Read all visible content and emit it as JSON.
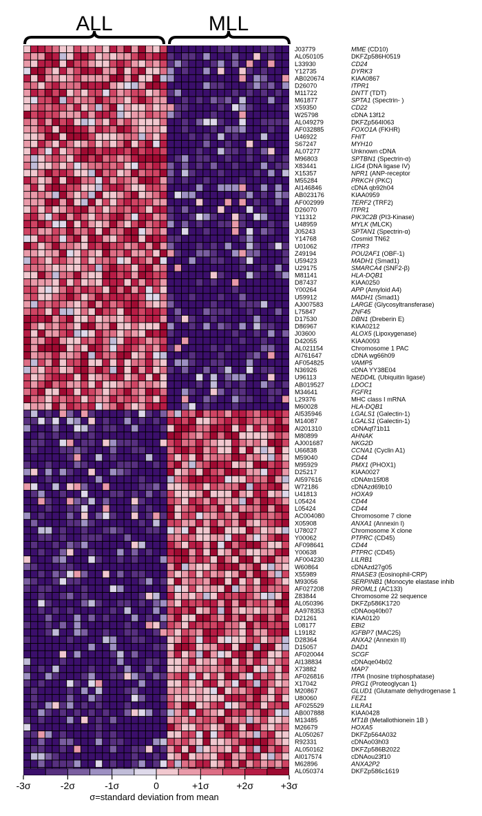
{
  "chart_data": {
    "type": "heatmap",
    "group_labels": [
      "ALL",
      "MLL"
    ],
    "group_sizes": [
      20,
      17
    ],
    "colorbar": {
      "ticks": [
        "-3σ",
        "-2σ",
        "-1σ",
        "0",
        "+1σ",
        "+2σ",
        "+3σ"
      ],
      "caption": "σ=standard deviation from mean",
      "colors": [
        "#3b0f6b",
        "#57307f",
        "#7a5ea0",
        "#9d90c2",
        "#c0bcd8",
        "#ded9ea",
        "#f1c8cf",
        "#e99aa9",
        "#dd6e85",
        "#cf4463",
        "#b71c45",
        "#9e0a31"
      ]
    },
    "rows": [
      {
        "acc": "J03779",
        "gene": "MME",
        "note": "(CD10)"
      },
      {
        "acc": "AL050105",
        "gene": "",
        "note": "DKFZp586H0519"
      },
      {
        "acc": "L33930",
        "gene": "CD24",
        "note": ""
      },
      {
        "acc": "Y12735",
        "gene": "DYRK3",
        "note": ""
      },
      {
        "acc": "AB020674",
        "gene": "",
        "note": "KIAA0867"
      },
      {
        "acc": "D26070",
        "gene": "ITPR1",
        "note": ""
      },
      {
        "acc": "M11722",
        "gene": "DNTT",
        "note": "(TDT)"
      },
      {
        "acc": "M61877",
        "gene": "SPTA1",
        "note": "(Spectrin-  )"
      },
      {
        "acc": "X59350",
        "gene": "CD22",
        "note": ""
      },
      {
        "acc": "W25798",
        "gene": "",
        "note": "cDNA 13f12"
      },
      {
        "acc": "AL049279",
        "gene": "",
        "note": "DKFZp564I063"
      },
      {
        "acc": "AF032885",
        "gene": "FOXO1A",
        "note": "(FKHR)"
      },
      {
        "acc": "U46922",
        "gene": "FHIT",
        "note": ""
      },
      {
        "acc": "S67247",
        "gene": "MYH10",
        "note": ""
      },
      {
        "acc": "AL07277",
        "gene": "",
        "note": "Unknown cDNA"
      },
      {
        "acc": "M96803",
        "gene": "SPTBN1",
        "note": "(Spectrin-α)"
      },
      {
        "acc": "X83441",
        "gene": "LIG4",
        "note": "(DNA ligase IV)"
      },
      {
        "acc": "X15357",
        "gene": "NPR1",
        "note": "(ANP-receptor"
      },
      {
        "acc": "M55284",
        "gene": "PRKCH",
        "note": "(PKC)"
      },
      {
        "acc": "AI146846",
        "gene": "",
        "note": "cDNA qb92h04"
      },
      {
        "acc": "AB023176",
        "gene": "",
        "note": "KIAA0959"
      },
      {
        "acc": "AF002999",
        "gene": "TERF2",
        "note": "(TRF2)"
      },
      {
        "acc": "D26070",
        "gene": "ITPR1",
        "note": ""
      },
      {
        "acc": "Y11312",
        "gene": "PIK3C2B",
        "note": "(PI3-Kinase)"
      },
      {
        "acc": "U48959",
        "gene": "MYLK",
        "note": "(MLCK)"
      },
      {
        "acc": "J05243",
        "gene": "SPTAN1",
        "note": "(Spectrin-α)"
      },
      {
        "acc": "Y14768",
        "gene": "",
        "note": "Cosmid TN62"
      },
      {
        "acc": "U01062",
        "gene": "ITPR3",
        "note": ""
      },
      {
        "acc": "Z49194",
        "gene": "POU2AF1",
        "note": "(OBF-1)"
      },
      {
        "acc": "U59423",
        "gene": "MADH1",
        "note": "(Smad1)"
      },
      {
        "acc": "U29175",
        "gene": "SMARCA4",
        "note": "(SNF2-β)"
      },
      {
        "acc": "M81141",
        "gene": "HLA-DQB1",
        "note": ""
      },
      {
        "acc": "D87437",
        "gene": "",
        "note": "KIAA0250"
      },
      {
        "acc": "Y00264",
        "gene": "APP",
        "note": "(Amyloid A4)"
      },
      {
        "acc": "U59912",
        "gene": "MADH1",
        "note": "(Smad1)"
      },
      {
        "acc": "AJ007583",
        "gene": "LARGE",
        "note": "(Glycosyltransferase)"
      },
      {
        "acc": "L75847",
        "gene": "ZNF45",
        "note": ""
      },
      {
        "acc": "D17530",
        "gene": "DBN1",
        "note": "(Dreberin E)"
      },
      {
        "acc": "D86967",
        "gene": "",
        "note": "KIAA0212"
      },
      {
        "acc": "J03600",
        "gene": "ALOX5",
        "note": "(Lipoxygenase)"
      },
      {
        "acc": "D42055",
        "gene": "",
        "note": "KIAA0093"
      },
      {
        "acc": "AL021154",
        "gene": "",
        "note": "Chromosome 1 PAC"
      },
      {
        "acc": "AI761647",
        "gene": "",
        "note": "cDNA wg66h09"
      },
      {
        "acc": "AF054825",
        "gene": "VAMP5",
        "note": ""
      },
      {
        "acc": "N36926",
        "gene": "",
        "note": "cDNA YY38E04"
      },
      {
        "acc": "U96113",
        "gene": "NEDD4L",
        "note": "(Ubiquitin ligase)"
      },
      {
        "acc": "AB019527",
        "gene": "LDOC1",
        "note": ""
      },
      {
        "acc": "M34641",
        "gene": "FGFR1",
        "note": ""
      },
      {
        "acc": "L29376",
        "gene": "",
        "note": "MHC class I mRNA"
      },
      {
        "acc": "M60028",
        "gene": "HLA-DQB1",
        "note": ""
      },
      {
        "acc": "AI535946",
        "gene": "LGALS1",
        "note": "(Galectin-1)"
      },
      {
        "acc": "M14087",
        "gene": "LGALS1",
        "note": "(Galectin-1)"
      },
      {
        "acc": "AI201310",
        "gene": "",
        "note": "cDNAqf71b11"
      },
      {
        "acc": "M80899",
        "gene": "AHNAK",
        "note": ""
      },
      {
        "acc": "AJ001687",
        "gene": "NKG2D",
        "note": ""
      },
      {
        "acc": "U66838",
        "gene": "CCNA1",
        "note": "(Cyclin A1)"
      },
      {
        "acc": "M59040",
        "gene": "CD44",
        "note": ""
      },
      {
        "acc": "M95929",
        "gene": "PMX1",
        "note": "(PHOX1)"
      },
      {
        "acc": "D25217",
        "gene": "",
        "note": "KIAA0027"
      },
      {
        "acc": "AI597616",
        "gene": "",
        "note": "cDNAtn15f08"
      },
      {
        "acc": "W72186",
        "gene": "",
        "note": "cDNAzd69b10"
      },
      {
        "acc": "U41813",
        "gene": "HOXA9",
        "note": ""
      },
      {
        "acc": "L05424",
        "gene": "CD44",
        "note": ""
      },
      {
        "acc": "L05424",
        "gene": "CD44",
        "note": ""
      },
      {
        "acc": "AC004080",
        "gene": "",
        "note": "Chromosome 7 clone"
      },
      {
        "acc": "X05908",
        "gene": "ANXA1",
        "note": "(Annexin I)"
      },
      {
        "acc": "U78027",
        "gene": "",
        "note": "Chromosome X clone"
      },
      {
        "acc": "Y00062",
        "gene": "PTPRC",
        "note": "(CD45)"
      },
      {
        "acc": "AF098641",
        "gene": "CD44",
        "note": ""
      },
      {
        "acc": "Y00638",
        "gene": "PTPRC",
        "note": "(CD45)"
      },
      {
        "acc": "AF004230",
        "gene": "LILRB1",
        "note": ""
      },
      {
        "acc": "W60864",
        "gene": "",
        "note": "cDNAzd27g05"
      },
      {
        "acc": "X55989",
        "gene": "RNASE3",
        "note": "(Eosinophil-CRP)"
      },
      {
        "acc": "M93056",
        "gene": "SERPINB1",
        "note": "(Monocyte elastase inhib"
      },
      {
        "acc": "AF027208",
        "gene": "PROML1",
        "note": "(AC133)"
      },
      {
        "acc": "Z83844",
        "gene": "",
        "note": "Chromosome 22 sequence"
      },
      {
        "acc": "AL050396",
        "gene": "",
        "note": "DKFZp586K1720"
      },
      {
        "acc": "AA978353",
        "gene": "",
        "note": "cDNAoq40b07"
      },
      {
        "acc": "D21261",
        "gene": "",
        "note": "KIAA0120"
      },
      {
        "acc": "L08177",
        "gene": "EBI2",
        "note": ""
      },
      {
        "acc": "L19182",
        "gene": "IGFBP7",
        "note": "(MAC25)"
      },
      {
        "acc": "D28364",
        "gene": "ANXA2",
        "note": "(Annexin II)"
      },
      {
        "acc": "D15057",
        "gene": "DAD1",
        "note": ""
      },
      {
        "acc": "AF020044",
        "gene": "SCGF",
        "note": ""
      },
      {
        "acc": "AI138834",
        "gene": "",
        "note": "cDNAqe04b02"
      },
      {
        "acc": "X73882",
        "gene": "MAP7",
        "note": ""
      },
      {
        "acc": "AF026816",
        "gene": "ITPA",
        "note": "(Inosine triphosphatase)"
      },
      {
        "acc": "X17042",
        "gene": "PRG1",
        "note": "(Proteoglycan 1)"
      },
      {
        "acc": "M20867",
        "gene": "GLUD1",
        "note": "(Glutamate dehydrogenase 1"
      },
      {
        "acc": "U80060",
        "gene": "FEZ1",
        "note": ""
      },
      {
        "acc": "AF025529",
        "gene": "LILRA1",
        "note": ""
      },
      {
        "acc": "AB007888",
        "gene": "",
        "note": "KIAA0428"
      },
      {
        "acc": "M13485",
        "gene": "MT1B",
        "note": "(Metallothionein 1B )"
      },
      {
        "acc": "M26679",
        "gene": "HOXA5",
        "note": ""
      },
      {
        "acc": "AL050267",
        "gene": "",
        "note": "DKFZp564A032"
      },
      {
        "acc": "R92331",
        "gene": "",
        "note": "cDNAo03h03"
      },
      {
        "acc": "AL050162",
        "gene": "",
        "note": "DKFZp586B2022"
      },
      {
        "acc": "AI017574",
        "gene": "",
        "note": "cDNAou23f10"
      },
      {
        "acc": "M62896",
        "gene": "ANXA2P2",
        "note": ""
      },
      {
        "acc": "AL050374",
        "gene": "",
        "note": "DKFZp586c1619"
      }
    ]
  }
}
